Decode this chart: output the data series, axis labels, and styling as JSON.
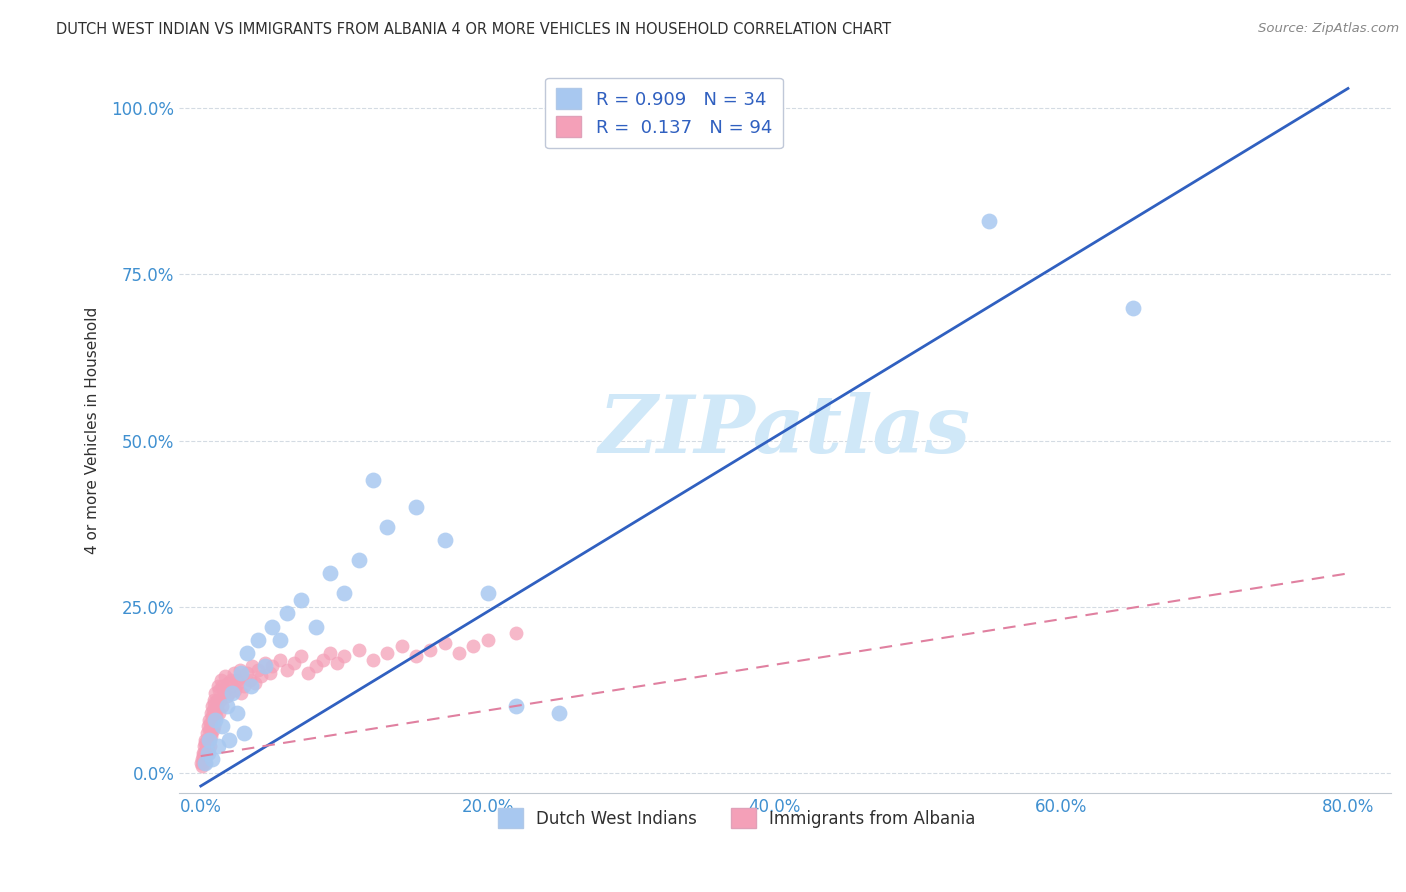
{
  "title": "DUTCH WEST INDIAN VS IMMIGRANTS FROM ALBANIA 4 OR MORE VEHICLES IN HOUSEHOLD CORRELATION CHART",
  "source": "Source: ZipAtlas.com",
  "xlabel_ticks": [
    "0.0%",
    "20.0%",
    "40.0%",
    "60.0%",
    "80.0%"
  ],
  "xlabel_vals": [
    0.0,
    20.0,
    40.0,
    60.0,
    80.0
  ],
  "ylabel": "4 or more Vehicles in Household",
  "ylabel_ticks": [
    "0.0%",
    "25.0%",
    "50.0%",
    "75.0%",
    "100.0%"
  ],
  "ylabel_vals": [
    0.0,
    25.0,
    50.0,
    75.0,
    100.0
  ],
  "xlim": [
    -1.5,
    83
  ],
  "ylim": [
    -3,
    106
  ],
  "legend_label1": "Dutch West Indians",
  "legend_label2": "Immigrants from Albania",
  "R1": 0.909,
  "N1": 34,
  "R2": 0.137,
  "N2": 94,
  "blue_color": "#a8c8f0",
  "pink_color": "#f4a0b8",
  "blue_line_color": "#3060c0",
  "pink_line_color": "#e080a0",
  "title_color": "#303030",
  "axis_label_color": "#4090d0",
  "watermark_color": "#d0e8f8",
  "blue_line_x0": 0.0,
  "blue_line_y0": -2.0,
  "blue_line_x1": 80.0,
  "blue_line_y1": 103.0,
  "pink_line_x0": 0.0,
  "pink_line_y0": 2.5,
  "pink_line_x1": 80.0,
  "pink_line_y1": 30.0,
  "blue_scatter_x": [
    0.3,
    0.5,
    0.6,
    0.8,
    1.0,
    1.2,
    1.5,
    1.8,
    2.0,
    2.2,
    2.5,
    2.8,
    3.0,
    3.2,
    3.5,
    4.0,
    4.5,
    5.0,
    5.5,
    6.0,
    7.0,
    8.0,
    9.0,
    10.0,
    11.0,
    12.0,
    13.0,
    15.0,
    17.0,
    20.0,
    22.0,
    25.0,
    55.0,
    65.0
  ],
  "blue_scatter_y": [
    1.5,
    3.0,
    5.0,
    2.0,
    8.0,
    4.0,
    7.0,
    10.0,
    5.0,
    12.0,
    9.0,
    15.0,
    6.0,
    18.0,
    13.0,
    20.0,
    16.0,
    22.0,
    20.0,
    24.0,
    26.0,
    22.0,
    30.0,
    27.0,
    32.0,
    44.0,
    37.0,
    40.0,
    35.0,
    27.0,
    10.0,
    9.0,
    83.0,
    70.0
  ],
  "pink_scatter_x": [
    0.05,
    0.08,
    0.1,
    0.12,
    0.15,
    0.18,
    0.2,
    0.22,
    0.25,
    0.28,
    0.3,
    0.32,
    0.35,
    0.38,
    0.4,
    0.42,
    0.45,
    0.48,
    0.5,
    0.52,
    0.55,
    0.58,
    0.6,
    0.62,
    0.65,
    0.68,
    0.7,
    0.72,
    0.75,
    0.78,
    0.8,
    0.82,
    0.85,
    0.88,
    0.9,
    0.92,
    0.95,
    0.98,
    1.0,
    1.05,
    1.1,
    1.15,
    1.2,
    1.25,
    1.3,
    1.35,
    1.4,
    1.45,
    1.5,
    1.6,
    1.7,
    1.8,
    1.9,
    2.0,
    2.1,
    2.2,
    2.3,
    2.4,
    2.5,
    2.6,
    2.7,
    2.8,
    2.9,
    3.0,
    3.2,
    3.4,
    3.6,
    3.8,
    4.0,
    4.2,
    4.5,
    4.8,
    5.0,
    5.5,
    6.0,
    6.5,
    7.0,
    7.5,
    8.0,
    8.5,
    9.0,
    9.5,
    10.0,
    11.0,
    12.0,
    13.0,
    14.0,
    15.0,
    16.0,
    17.0,
    18.0,
    19.0,
    20.0,
    22.0
  ],
  "pink_scatter_y": [
    1.5,
    2.0,
    1.0,
    3.0,
    2.5,
    1.5,
    4.0,
    2.0,
    3.0,
    5.0,
    1.5,
    4.5,
    3.5,
    2.5,
    6.0,
    3.0,
    5.0,
    4.0,
    7.0,
    3.5,
    6.5,
    5.0,
    8.0,
    4.0,
    7.5,
    6.0,
    9.0,
    5.5,
    8.5,
    7.0,
    10.0,
    6.5,
    9.5,
    8.0,
    11.0,
    7.0,
    10.5,
    9.0,
    12.0,
    8.5,
    11.0,
    10.0,
    13.0,
    9.0,
    12.5,
    11.0,
    14.0,
    10.0,
    13.0,
    12.0,
    14.5,
    11.5,
    13.5,
    12.0,
    14.0,
    13.0,
    15.0,
    12.5,
    14.0,
    13.5,
    15.5,
    12.0,
    14.5,
    13.0,
    15.0,
    14.0,
    16.0,
    13.5,
    15.5,
    14.5,
    16.5,
    15.0,
    16.0,
    17.0,
    15.5,
    16.5,
    17.5,
    15.0,
    16.0,
    17.0,
    18.0,
    16.5,
    17.5,
    18.5,
    17.0,
    18.0,
    19.0,
    17.5,
    18.5,
    19.5,
    18.0,
    19.0,
    20.0,
    21.0
  ]
}
